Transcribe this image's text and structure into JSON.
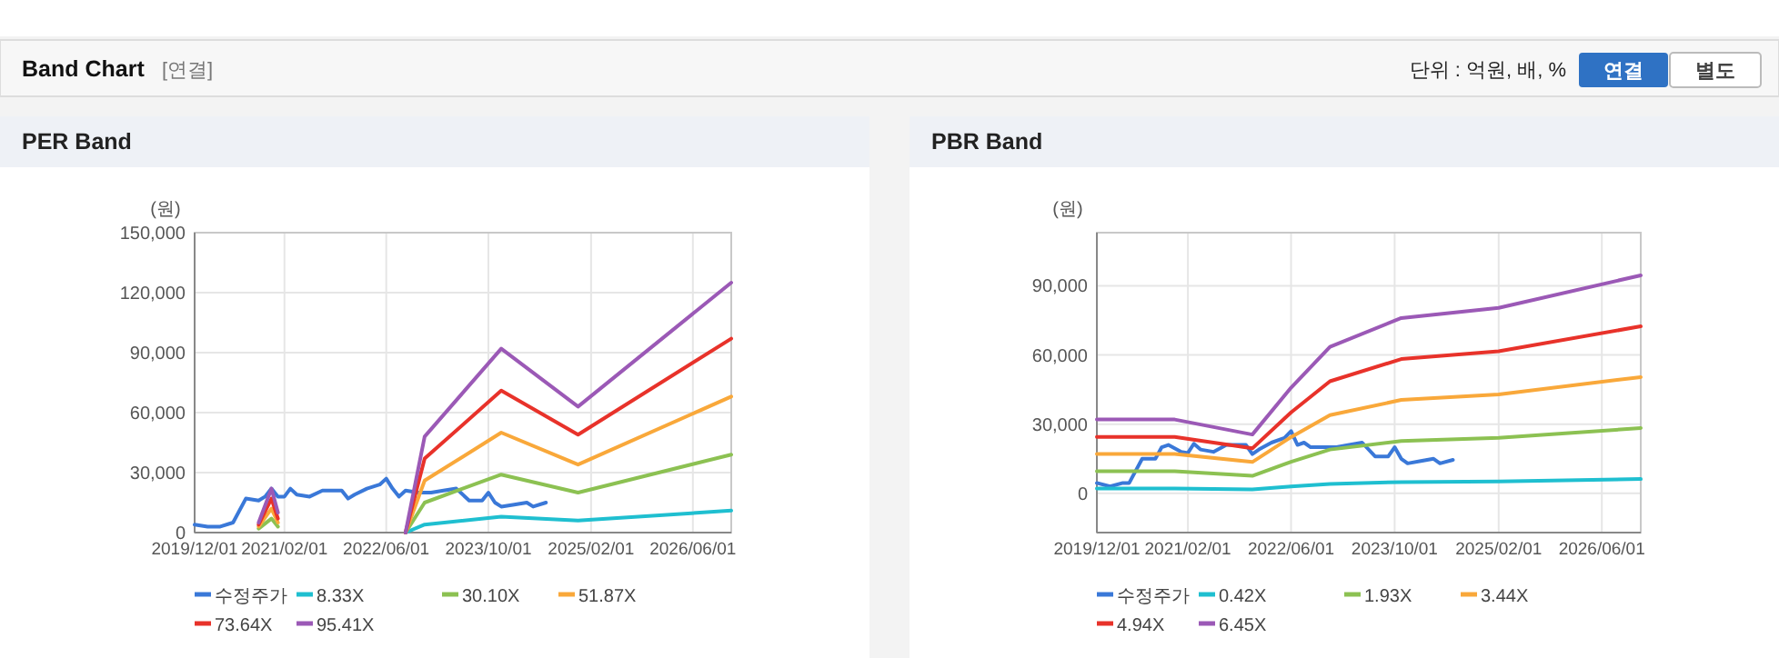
{
  "chart_data": [
    {
      "type": "line",
      "title": "PER Band",
      "ylabel": "(원)",
      "annotations": [
        "Band Chart",
        "[연결]",
        "단위 : 억원, 배, %",
        "연결",
        "별도"
      ],
      "xlim": [
        "2019-12-01",
        "2026-12-01"
      ],
      "ylim": [
        0,
        150000
      ],
      "yticks": [
        {
          "value": 0,
          "label": "0"
        },
        {
          "value": 30000,
          "label": "30,000"
        },
        {
          "value": 60000,
          "label": "60,000"
        },
        {
          "value": 90000,
          "label": "90,000"
        },
        {
          "value": 120000,
          "label": "120,000"
        },
        {
          "value": 150000,
          "label": "150,000"
        }
      ],
      "xticks": [
        {
          "value": "2019-12-01",
          "label": "2019/12/01"
        },
        {
          "value": "2021-02-01",
          "label": "2021/02/01"
        },
        {
          "value": "2022-06-01",
          "label": "2022/06/01"
        },
        {
          "value": "2023-10-01",
          "label": "2023/10/01"
        },
        {
          "value": "2025-02-01",
          "label": "2025/02/01"
        },
        {
          "value": "2026-06-01",
          "label": "2026/06/01"
        }
      ],
      "grid": true,
      "legend": "bottom",
      "marker": "none",
      "line_style": "solid",
      "series": [
        {
          "name": "수정주가",
          "color": "#3a78d8",
          "x": [
            "2019-12",
            "2020-02",
            "2020-04",
            "2020-06",
            "2020-08",
            "2020-10",
            "2020-11",
            "2020-12",
            "2021-01",
            "2021-02",
            "2021-03",
            "2021-04",
            "2021-06",
            "2021-08",
            "2021-11",
            "2021-12",
            "2022-01",
            "2022-03",
            "2022-05",
            "2022-06",
            "2022-07",
            "2022-08",
            "2022-09",
            "2022-11",
            "2023-01",
            "2023-03",
            "2023-05",
            "2023-07",
            "2023-09",
            "2023-10",
            "2023-11",
            "2023-12",
            "2024-02",
            "2024-04",
            "2024-05",
            "2024-07"
          ],
          "values": [
            4000,
            3000,
            3000,
            5000,
            17000,
            16000,
            18000,
            22000,
            18000,
            18000,
            22000,
            19000,
            18000,
            21000,
            21000,
            17000,
            19000,
            22000,
            24000,
            27000,
            22000,
            18000,
            21000,
            20000,
            20000,
            21000,
            22000,
            16000,
            16000,
            20000,
            15000,
            13000,
            14000,
            15000,
            13000,
            15000
          ]
        },
        {
          "name": "8.33X",
          "color": "#1fbfd0",
          "x": [
            "2022-09",
            "2022-12",
            "2023-12",
            "2024-12",
            "2026-12"
          ],
          "values": [
            0,
            4000,
            8000,
            6000,
            11000
          ]
        },
        {
          "name": "30.10X",
          "color": "#8cc152",
          "x": [
            "2020-10",
            "2020-12",
            "2021-01",
            "2021-06",
            "2022-09",
            "2022-12",
            "2023-12",
            "2024-12",
            "2026-12"
          ],
          "values": [
            2000,
            7000,
            3000,
            null,
            0,
            15000,
            29000,
            20000,
            39000
          ]
        },
        {
          "name": "51.87X",
          "color": "#f9a83a",
          "x": [
            "2020-10",
            "2020-12",
            "2021-01",
            "2021-06",
            "2022-09",
            "2022-12",
            "2023-12",
            "2024-12",
            "2026-12"
          ],
          "values": [
            3000,
            12000,
            5000,
            null,
            0,
            26000,
            50000,
            34000,
            68000
          ]
        },
        {
          "name": "73.64X",
          "color": "#e8322a",
          "x": [
            "2020-10",
            "2020-12",
            "2021-01",
            "2021-06",
            "2022-09",
            "2022-12",
            "2023-12",
            "2024-12",
            "2026-12"
          ],
          "values": [
            4000,
            17000,
            7000,
            null,
            0,
            37000,
            71000,
            49000,
            97000
          ]
        },
        {
          "name": "95.41X",
          "color": "#9b59b6",
          "x": [
            "2020-10",
            "2020-12",
            "2021-01",
            "2021-06",
            "2022-09",
            "2022-12",
            "2023-12",
            "2024-12",
            "2026-12"
          ],
          "values": [
            5000,
            22000,
            10000,
            null,
            0,
            48000,
            92000,
            63000,
            125000
          ]
        }
      ]
    },
    {
      "type": "line",
      "title": "PBR Band",
      "ylabel": "(원)",
      "xlim": [
        "2019-12-01",
        "2026-12-01"
      ],
      "ylim": [
        -17000,
        113000
      ],
      "yticks": [
        {
          "value": 0,
          "label": "0"
        },
        {
          "value": 30000,
          "label": "30,000"
        },
        {
          "value": 60000,
          "label": "60,000"
        },
        {
          "value": 90000,
          "label": "90,000"
        }
      ],
      "xticks": [
        {
          "value": "2019-12-01",
          "label": "2019/12/01"
        },
        {
          "value": "2021-02-01",
          "label": "2021/02/01"
        },
        {
          "value": "2022-06-01",
          "label": "2022/06/01"
        },
        {
          "value": "2023-10-01",
          "label": "2023/10/01"
        },
        {
          "value": "2025-02-01",
          "label": "2025/02/01"
        },
        {
          "value": "2026-06-01",
          "label": "2026/06/01"
        }
      ],
      "grid": true,
      "legend": "bottom",
      "marker": "none",
      "line_style": "solid",
      "series": [
        {
          "name": "수정주가",
          "color": "#3a78d8",
          "x": [
            "2019-12",
            "2020-02",
            "2020-04",
            "2020-05",
            "2020-07",
            "2020-09",
            "2020-10",
            "2020-11",
            "2021-01",
            "2021-02",
            "2021-03",
            "2021-04",
            "2021-06",
            "2021-08",
            "2021-11",
            "2021-12",
            "2022-01",
            "2022-03",
            "2022-05",
            "2022-06",
            "2022-07",
            "2022-08",
            "2022-09",
            "2022-11",
            "2023-01",
            "2023-03",
            "2023-05",
            "2023-07",
            "2023-09",
            "2023-10",
            "2023-11",
            "2023-12",
            "2024-02",
            "2024-04",
            "2024-05",
            "2024-07"
          ],
          "values": [
            4500,
            3000,
            4500,
            4500,
            15000,
            15000,
            20000,
            21000,
            18000,
            17500,
            21500,
            19000,
            18000,
            21000,
            21000,
            17000,
            19000,
            22000,
            24000,
            27000,
            21000,
            22000,
            20000,
            20000,
            20000,
            21000,
            22000,
            16000,
            16000,
            20000,
            15000,
            13000,
            14000,
            15000,
            13000,
            14500
          ]
        },
        {
          "name": "0.42X",
          "color": "#1fbfd0",
          "x": [
            "2019-12",
            "2020-12",
            "2021-12",
            "2022-06",
            "2022-12",
            "2023-11",
            "2025-02",
            "2026-12"
          ],
          "values": [
            2100,
            2100,
            1700,
            3000,
            4100,
            4900,
            5200,
            6200
          ]
        },
        {
          "name": "1.93X",
          "color": "#8cc152",
          "x": [
            "2019-12",
            "2020-12",
            "2021-12",
            "2022-06",
            "2022-12",
            "2023-11",
            "2025-02",
            "2026-12"
          ],
          "values": [
            9600,
            9600,
            7600,
            13700,
            19000,
            22700,
            24100,
            28300
          ]
        },
        {
          "name": "3.44X",
          "color": "#f9a83a",
          "x": [
            "2019-12",
            "2020-12",
            "2021-12",
            "2022-06",
            "2022-12",
            "2023-11",
            "2025-02",
            "2026-12"
          ],
          "values": [
            17100,
            17100,
            13600,
            24400,
            33900,
            40500,
            42900,
            50400
          ]
        },
        {
          "name": "4.94X",
          "color": "#e8322a",
          "x": [
            "2019-12",
            "2020-12",
            "2021-12",
            "2022-06",
            "2022-12",
            "2023-11",
            "2025-02",
            "2026-12"
          ],
          "values": [
            24500,
            24500,
            19500,
            35100,
            48600,
            58200,
            61600,
            72400
          ]
        },
        {
          "name": "6.45X",
          "color": "#9b59b6",
          "x": [
            "2019-12",
            "2020-12",
            "2021-12",
            "2022-06",
            "2022-12",
            "2023-11",
            "2025-02",
            "2026-12"
          ],
          "values": [
            32000,
            32000,
            25500,
            45800,
            63500,
            76000,
            80400,
            94500
          ]
        }
      ]
    }
  ]
}
